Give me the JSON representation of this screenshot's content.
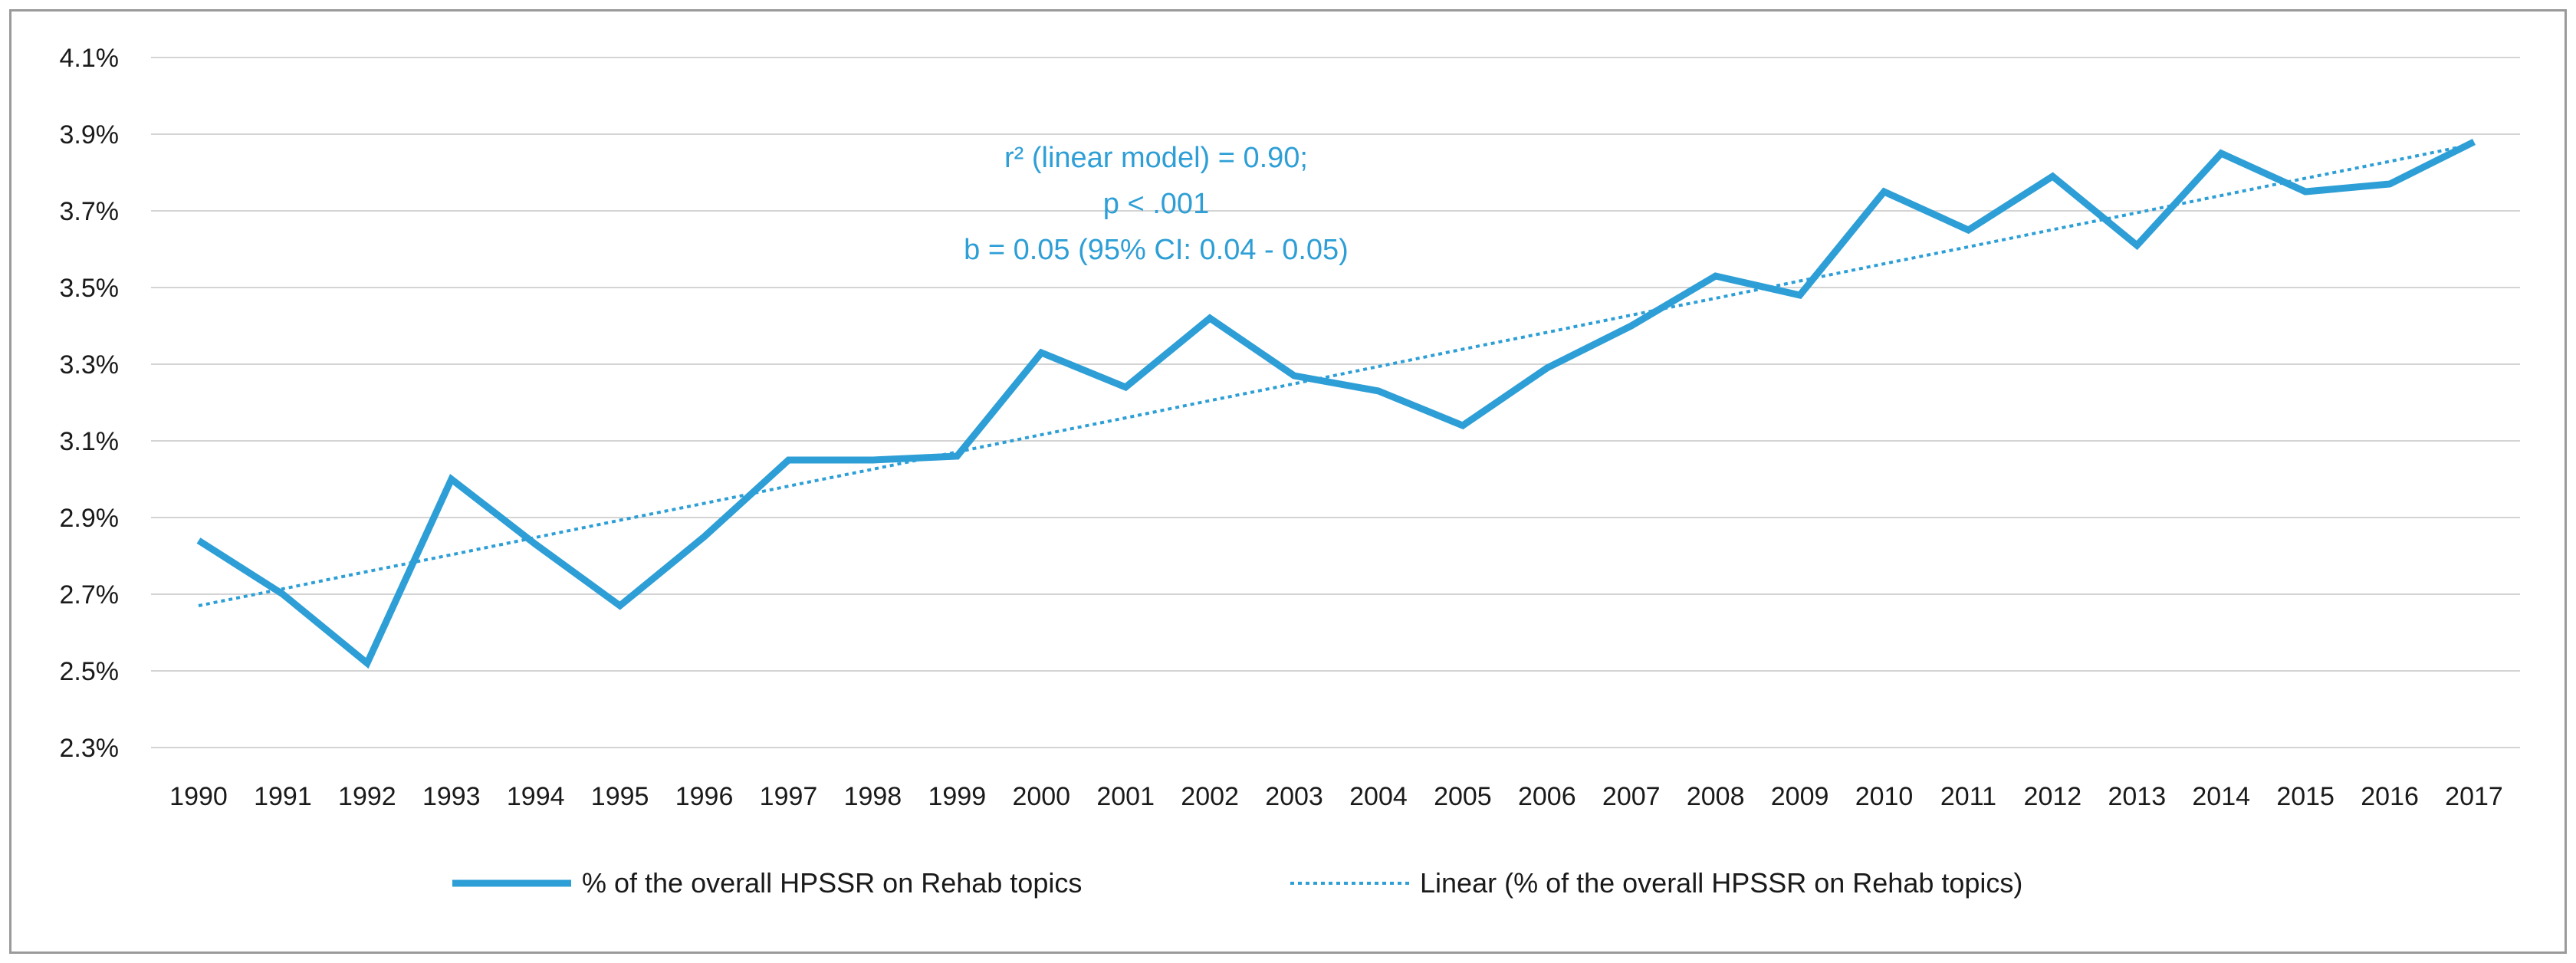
{
  "chart_data": {
    "type": "line",
    "title": "",
    "xlabel": "",
    "ylabel": "",
    "categories": [
      "1990",
      "1991",
      "1992",
      "1993",
      "1994",
      "1995",
      "1996",
      "1997",
      "1998",
      "1999",
      "2000",
      "2001",
      "2002",
      "2003",
      "2004",
      "2005",
      "2006",
      "2007",
      "2008",
      "2009",
      "2010",
      "2011",
      "2012",
      "2013",
      "2014",
      "2015",
      "2016",
      "2017"
    ],
    "y_ticks": [
      "2.3%",
      "2.5%",
      "2.7%",
      "2.9%",
      "3.1%",
      "3.3%",
      "3.5%",
      "3.7%",
      "3.9%",
      "4.1%"
    ],
    "ylim": [
      2.3,
      4.1
    ],
    "grid": true,
    "series": [
      {
        "name": "% of the overall HPSSR on Rehab topics",
        "style": "solid",
        "color": "#2e9fd6",
        "values": [
          2.84,
          2.7,
          2.52,
          3.0,
          2.83,
          2.67,
          2.85,
          3.05,
          3.05,
          3.06,
          3.33,
          3.24,
          3.42,
          3.27,
          3.23,
          3.14,
          3.29,
          3.4,
          3.53,
          3.48,
          3.75,
          3.65,
          3.79,
          3.61,
          3.85,
          3.75,
          3.77,
          3.88
        ]
      },
      {
        "name": "Linear (% of the overall HPSSR on Rehab topics)",
        "style": "dotted",
        "color": "#2e9fd6",
        "values": [
          2.67,
          2.714,
          2.759,
          2.803,
          2.848,
          2.893,
          2.937,
          2.982,
          3.026,
          3.071,
          3.116,
          3.16,
          3.205,
          3.249,
          3.294,
          3.339,
          3.383,
          3.428,
          3.472,
          3.517,
          3.562,
          3.606,
          3.651,
          3.695,
          3.74,
          3.785,
          3.829,
          3.874
        ]
      }
    ],
    "annotations": [
      "r² (linear model) = 0.90;",
      "p < .001",
      "b = 0.05 (95% CI: 0.04 - 0.05)"
    ],
    "legend_position": "bottom"
  }
}
